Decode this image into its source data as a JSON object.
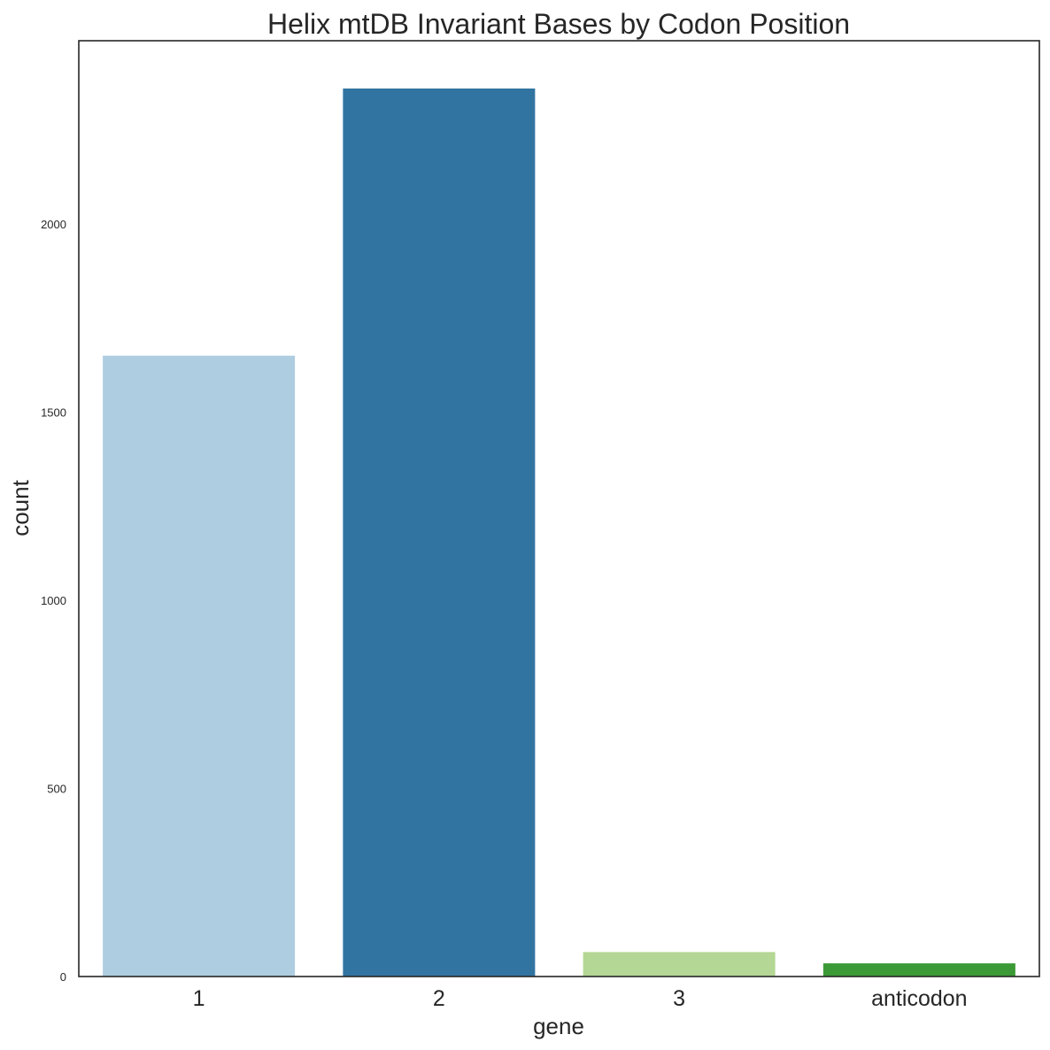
{
  "chart_data": {
    "type": "bar",
    "title": "Helix mtDB Invariant Bases by Codon Position",
    "xlabel": "gene",
    "ylabel": "count",
    "categories": [
      "1",
      "2",
      "3",
      "anticodon"
    ],
    "values": [
      1650,
      2360,
      65,
      35
    ],
    "colors": [
      "#aecde1",
      "#3274a1",
      "#b4d795",
      "#3b9a36"
    ],
    "ylim": [
      0,
      2487
    ],
    "yticks": [
      0,
      500,
      1000,
      1500,
      2000
    ],
    "grid": false,
    "legend": "none"
  }
}
